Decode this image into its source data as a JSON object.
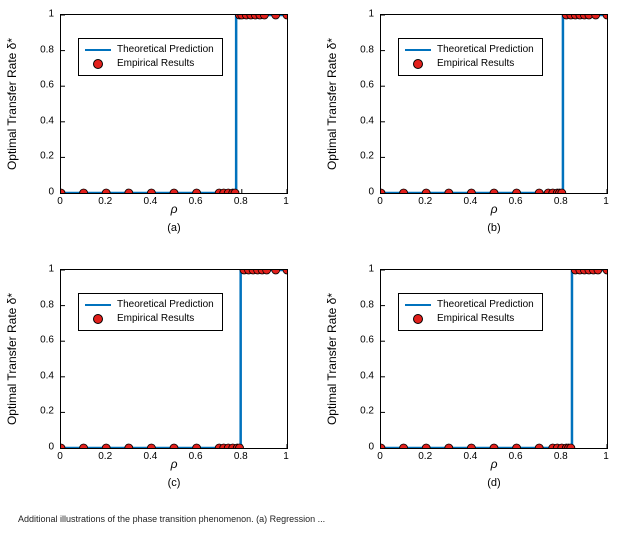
{
  "figure": {
    "background_color": "#ffffff",
    "panels": [
      {
        "id": "a",
        "sublabel": "(a)",
        "type": "line+scatter",
        "xlim": [
          0,
          1
        ],
        "ylim": [
          0,
          1
        ],
        "xticks": [
          0,
          0.2,
          0.4,
          0.6,
          0.8,
          1
        ],
        "yticks": [
          0,
          0.2,
          0.4,
          0.6,
          0.8,
          1
        ],
        "xlabel": "ρ",
        "ylabel": "Optimal Transfer Rate δ*",
        "axis_color": "#000000",
        "tick_fontsize": 10,
        "label_fontsize": 12,
        "line": {
          "threshold": 0.775,
          "color": "#0072bd",
          "width": 2.5
        },
        "markers": {
          "color": "#e2201c",
          "edge": "#000000",
          "size": 8,
          "points": [
            {
              "x": 0.0,
              "y": 0.0
            },
            {
              "x": 0.1,
              "y": 0.0
            },
            {
              "x": 0.2,
              "y": 0.0
            },
            {
              "x": 0.3,
              "y": 0.0
            },
            {
              "x": 0.4,
              "y": 0.0
            },
            {
              "x": 0.5,
              "y": 0.0
            },
            {
              "x": 0.6,
              "y": 0.0
            },
            {
              "x": 0.7,
              "y": 0.0
            },
            {
              "x": 0.72,
              "y": 0.0
            },
            {
              "x": 0.74,
              "y": 0.0
            },
            {
              "x": 0.76,
              "y": 0.0
            },
            {
              "x": 0.77,
              "y": 0.0
            },
            {
              "x": 0.79,
              "y": 1.0
            },
            {
              "x": 0.8,
              "y": 1.0
            },
            {
              "x": 0.82,
              "y": 1.0
            },
            {
              "x": 0.84,
              "y": 1.0
            },
            {
              "x": 0.86,
              "y": 1.0
            },
            {
              "x": 0.88,
              "y": 1.0
            },
            {
              "x": 0.9,
              "y": 1.0
            },
            {
              "x": 0.95,
              "y": 1.0
            },
            {
              "x": 1.0,
              "y": 1.0
            }
          ]
        },
        "legend": {
          "position": "upper-left",
          "items": [
            {
              "label": "Theoretical Prediction",
              "type": "line",
              "color": "#0072bd"
            },
            {
              "label": "Empirical Results",
              "type": "marker",
              "color": "#e2201c"
            }
          ]
        }
      },
      {
        "id": "b",
        "sublabel": "(b)",
        "type": "line+scatter",
        "xlim": [
          0,
          1
        ],
        "ylim": [
          0,
          1
        ],
        "xticks": [
          0,
          0.2,
          0.4,
          0.6,
          0.8,
          1
        ],
        "yticks": [
          0,
          0.2,
          0.4,
          0.6,
          0.8,
          1
        ],
        "xlabel": "ρ",
        "ylabel": "Optimal Transfer Rate δ*",
        "axis_color": "#000000",
        "tick_fontsize": 10,
        "label_fontsize": 12,
        "line": {
          "threshold": 0.805,
          "color": "#0072bd",
          "width": 2.5
        },
        "markers": {
          "color": "#e2201c",
          "edge": "#000000",
          "size": 8,
          "points": [
            {
              "x": 0.0,
              "y": 0.0
            },
            {
              "x": 0.1,
              "y": 0.0
            },
            {
              "x": 0.2,
              "y": 0.0
            },
            {
              "x": 0.3,
              "y": 0.0
            },
            {
              "x": 0.4,
              "y": 0.0
            },
            {
              "x": 0.5,
              "y": 0.0
            },
            {
              "x": 0.6,
              "y": 0.0
            },
            {
              "x": 0.7,
              "y": 0.0
            },
            {
              "x": 0.74,
              "y": 0.0
            },
            {
              "x": 0.76,
              "y": 0.0
            },
            {
              "x": 0.78,
              "y": 0.0
            },
            {
              "x": 0.79,
              "y": 0.0
            },
            {
              "x": 0.8,
              "y": 0.0
            },
            {
              "x": 0.82,
              "y": 1.0
            },
            {
              "x": 0.84,
              "y": 1.0
            },
            {
              "x": 0.86,
              "y": 1.0
            },
            {
              "x": 0.88,
              "y": 1.0
            },
            {
              "x": 0.9,
              "y": 1.0
            },
            {
              "x": 0.92,
              "y": 1.0
            },
            {
              "x": 0.95,
              "y": 1.0
            },
            {
              "x": 1.0,
              "y": 1.0
            }
          ]
        },
        "legend": {
          "position": "upper-left",
          "items": [
            {
              "label": "Theoretical Prediction",
              "type": "line",
              "color": "#0072bd"
            },
            {
              "label": "Empirical Results",
              "type": "marker",
              "color": "#e2201c"
            }
          ]
        }
      },
      {
        "id": "c",
        "sublabel": "(c)",
        "type": "line+scatter",
        "xlim": [
          0,
          1
        ],
        "ylim": [
          0,
          1
        ],
        "xticks": [
          0,
          0.2,
          0.4,
          0.6,
          0.8,
          1
        ],
        "yticks": [
          0,
          0.2,
          0.4,
          0.6,
          0.8,
          1
        ],
        "xlabel": "ρ",
        "ylabel": "Optimal Transfer Rate δ*",
        "axis_color": "#000000",
        "tick_fontsize": 10,
        "label_fontsize": 12,
        "line": {
          "threshold": 0.795,
          "color": "#0072bd",
          "width": 2.5
        },
        "markers": {
          "color": "#e2201c",
          "edge": "#000000",
          "size": 8,
          "points": [
            {
              "x": 0.0,
              "y": 0.0
            },
            {
              "x": 0.1,
              "y": 0.0
            },
            {
              "x": 0.2,
              "y": 0.0
            },
            {
              "x": 0.3,
              "y": 0.0
            },
            {
              "x": 0.4,
              "y": 0.0
            },
            {
              "x": 0.5,
              "y": 0.0
            },
            {
              "x": 0.6,
              "y": 0.0
            },
            {
              "x": 0.7,
              "y": 0.0
            },
            {
              "x": 0.72,
              "y": 0.0
            },
            {
              "x": 0.74,
              "y": 0.0
            },
            {
              "x": 0.76,
              "y": 0.0
            },
            {
              "x": 0.78,
              "y": 0.0
            },
            {
              "x": 0.79,
              "y": 0.0
            },
            {
              "x": 0.81,
              "y": 1.0
            },
            {
              "x": 0.83,
              "y": 1.0
            },
            {
              "x": 0.85,
              "y": 1.0
            },
            {
              "x": 0.87,
              "y": 1.0
            },
            {
              "x": 0.89,
              "y": 1.0
            },
            {
              "x": 0.91,
              "y": 1.0
            },
            {
              "x": 0.95,
              "y": 1.0
            },
            {
              "x": 1.0,
              "y": 1.0
            }
          ]
        },
        "legend": {
          "position": "upper-left",
          "items": [
            {
              "label": "Theoretical Prediction",
              "type": "line",
              "color": "#0072bd"
            },
            {
              "label": "Empirical Results",
              "type": "marker",
              "color": "#e2201c"
            }
          ]
        }
      },
      {
        "id": "d",
        "sublabel": "(d)",
        "type": "line+scatter",
        "xlim": [
          0,
          1
        ],
        "ylim": [
          0,
          1
        ],
        "xticks": [
          0,
          0.2,
          0.4,
          0.6,
          0.8,
          1
        ],
        "yticks": [
          0,
          0.2,
          0.4,
          0.6,
          0.8,
          1
        ],
        "xlabel": "ρ",
        "ylabel": "Optimal Transfer Rate δ*",
        "axis_color": "#000000",
        "tick_fontsize": 10,
        "label_fontsize": 12,
        "line": {
          "threshold": 0.845,
          "color": "#0072bd",
          "width": 2.5
        },
        "markers": {
          "color": "#e2201c",
          "edge": "#000000",
          "size": 8,
          "points": [
            {
              "x": 0.0,
              "y": 0.0
            },
            {
              "x": 0.1,
              "y": 0.0
            },
            {
              "x": 0.2,
              "y": 0.0
            },
            {
              "x": 0.3,
              "y": 0.0
            },
            {
              "x": 0.4,
              "y": 0.0
            },
            {
              "x": 0.5,
              "y": 0.0
            },
            {
              "x": 0.6,
              "y": 0.0
            },
            {
              "x": 0.7,
              "y": 0.0
            },
            {
              "x": 0.76,
              "y": 0.0
            },
            {
              "x": 0.78,
              "y": 0.0
            },
            {
              "x": 0.8,
              "y": 0.0
            },
            {
              "x": 0.82,
              "y": 0.0
            },
            {
              "x": 0.83,
              "y": 0.0
            },
            {
              "x": 0.84,
              "y": 0.0
            },
            {
              "x": 0.86,
              "y": 1.0
            },
            {
              "x": 0.88,
              "y": 1.0
            },
            {
              "x": 0.9,
              "y": 1.0
            },
            {
              "x": 0.92,
              "y": 1.0
            },
            {
              "x": 0.94,
              "y": 1.0
            },
            {
              "x": 0.96,
              "y": 1.0
            },
            {
              "x": 1.0,
              "y": 1.0
            }
          ]
        },
        "legend": {
          "position": "upper-left",
          "items": [
            {
              "label": "Theoretical Prediction",
              "type": "line",
              "color": "#0072bd"
            },
            {
              "label": "Empirical Results",
              "type": "marker",
              "color": "#e2201c"
            }
          ]
        }
      }
    ],
    "caption_fragment": "Additional illustrations of the phase transition phenomenon. (a) Regression ..."
  }
}
